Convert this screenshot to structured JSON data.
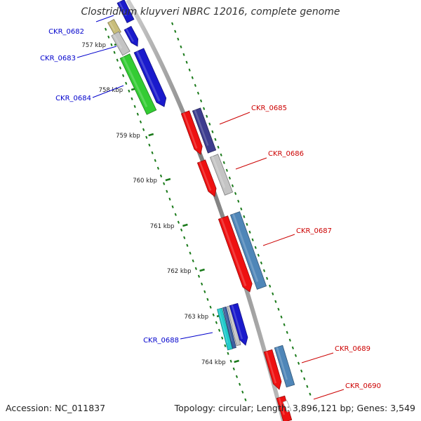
{
  "title": "Clostridium kluyveri NBRC 12016, complete genome",
  "footer": {
    "accession": "Accession: NC_011837",
    "summary": "Topology: circular; Length: 3,896,121 bp; Genes: 3,549"
  },
  "colors": {
    "backbone": "#8a8a8a",
    "tick": "#1a7a1a",
    "left_label": "#0000cc",
    "right_label": "#cc0000",
    "kbp_label": "#222222"
  },
  "kbp_ticks": [
    "757 kbp",
    "758 kbp",
    "759 kbp",
    "760 kbp",
    "761 kbp",
    "762 kbp",
    "763 kbp",
    "764 kbp"
  ],
  "genes": [
    {
      "label": "CKR_0682",
      "side": "left",
      "color": "#0000cc"
    },
    {
      "label": "CKR_0683",
      "side": "left",
      "color": "#0000cc"
    },
    {
      "label": "CKR_0684",
      "side": "left",
      "color": "#0000cc"
    },
    {
      "label": "CKR_0685",
      "side": "right",
      "color": "#cc0000"
    },
    {
      "label": "CKR_0686",
      "side": "right",
      "color": "#cc0000"
    },
    {
      "label": "CKR_0687",
      "side": "right",
      "color": "#cc0000"
    },
    {
      "label": "CKR_0688",
      "side": "left",
      "color": "#0000cc"
    },
    {
      "label": "CKR_0689",
      "side": "right",
      "color": "#cc0000"
    },
    {
      "label": "CKR_0690",
      "side": "right",
      "color": "#cc0000"
    }
  ]
}
